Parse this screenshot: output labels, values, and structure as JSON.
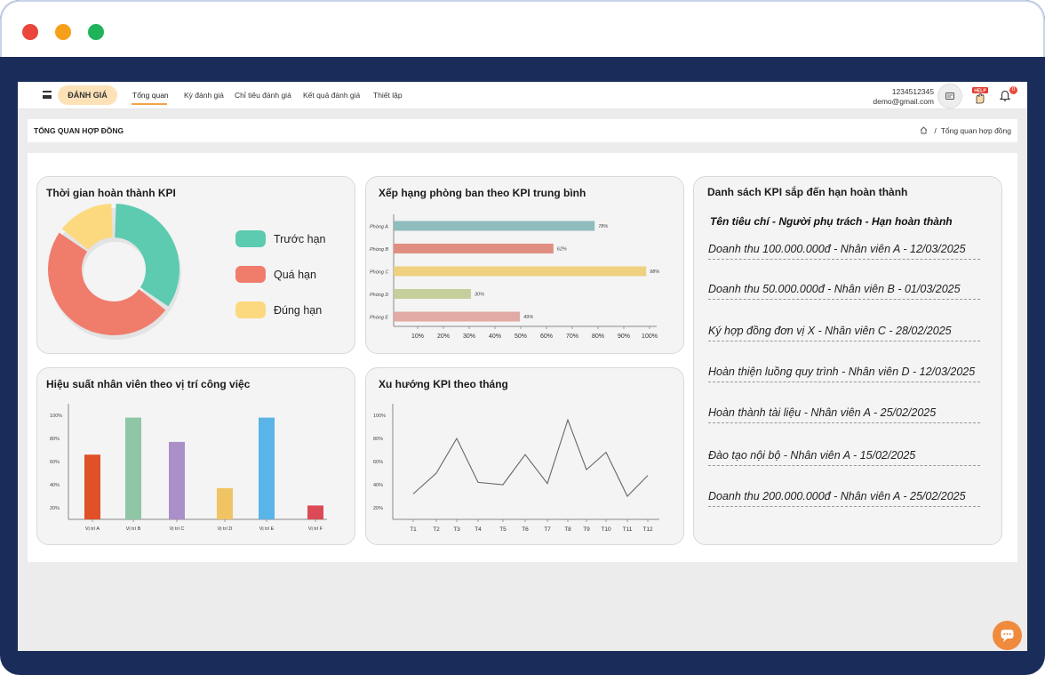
{
  "window": {
    "controls": [
      {
        "name": "close",
        "color": "#e9463c"
      },
      {
        "name": "minimize",
        "color": "#f6a01a"
      },
      {
        "name": "maximize",
        "color": "#1fb45a"
      }
    ]
  },
  "topnav": {
    "brand": "ĐÁNH GIÁ",
    "items": [
      {
        "label": "Tổng quan",
        "active": true
      },
      {
        "label": "Kỳ đánh giá",
        "active": false
      },
      {
        "label": "Chỉ tiêu đánh giá",
        "active": false
      },
      {
        "label": "Kết quả đánh giá",
        "active": false
      },
      {
        "label": "Thiết lập",
        "active": false
      }
    ],
    "user": {
      "phone": "1234512345",
      "email": "demo@gmail.com"
    },
    "help_label": "HELP",
    "notification_count": "0"
  },
  "page": {
    "title": "TỔNG QUAN HỢP ĐỒNG",
    "breadcrumb": {
      "separator": "/",
      "current": "Tổng quan hợp đồng"
    }
  },
  "cards": {
    "completion": {
      "title": "Thời gian hoàn thành KPI"
    },
    "ranking": {
      "title": "Xếp hạng phòng ban theo KPI trung bình"
    },
    "performance": {
      "title": "Hiệu suất nhân viên theo vị trí công việc"
    },
    "trend": {
      "title": "Xu hướng KPI theo tháng"
    },
    "deadlines": {
      "title": "Danh sách KPI sắp đến hạn hoàn thành",
      "header": "Tên tiêu chí - Người phụ trách - Hạn hoàn thành",
      "items": [
        "Doanh thu 100.000.000đ - Nhân viên A - 12/03/2025",
        "Doanh thu 50.000.000đ - Nhân viên B - 01/03/2025",
        "Ký hợp đồng đơn vị X - Nhân viên C - 28/02/2025",
        "Hoàn thiện luồng quy trình - Nhân viên D - 12/03/2025",
        "Hoàn thành tài liệu - Nhân viên A - 25/02/2025",
        "Đào tạo nội bộ - Nhân viên A - 15/02/2025",
        "Doanh thu 200.000.000đ - Nhân viên A - 25/02/2025"
      ]
    }
  },
  "chart_data": [
    {
      "type": "pie",
      "title": "Thời gian hoàn thành KPI",
      "donut": true,
      "labels": [
        "Trước hạn",
        "Quá hạn",
        "Đúng hạn"
      ],
      "values": [
        35,
        50,
        15
      ],
      "colors": [
        "#5ccbb0",
        "#f07c6c",
        "#fcd97f"
      ],
      "legend": "right"
    },
    {
      "type": "bar",
      "orientation": "horizontal",
      "title": "Xếp hạng phòng ban theo KPI trung bình",
      "categories": [
        "Phòng A",
        "Phòng B",
        "Phòng C",
        "Phòng D",
        "Phòng E"
      ],
      "values": [
        78,
        62,
        98,
        30,
        49
      ],
      "value_labels": [
        "78%",
        "62%",
        "98%",
        "30%",
        "49%"
      ],
      "colors": [
        "#8fbcbc",
        "#df8f82",
        "#eed07e",
        "#c5cf9b",
        "#e1aaa4"
      ],
      "xticks": [
        "10%",
        "20%",
        "30%",
        "40%",
        "50%",
        "60%",
        "70%",
        "80%",
        "90%",
        "100%"
      ],
      "xlim": [
        0,
        100
      ]
    },
    {
      "type": "bar",
      "title": "Hiệu suất nhân viên theo vị trí công việc",
      "categories": [
        "Vị trí A",
        "Vị trí B",
        "Vị trí C",
        "Vị trí D",
        "Vị trí E",
        "Vị trí F"
      ],
      "values": [
        66,
        98,
        77,
        37,
        98,
        22
      ],
      "colors": [
        "#e05128",
        "#8ec6a6",
        "#ab8fc9",
        "#f0c462",
        "#5ab4e8",
        "#dc4a55"
      ],
      "yticks": [
        "20%",
        "40%",
        "60%",
        "80%",
        "100%"
      ],
      "ylim": [
        10,
        110
      ]
    },
    {
      "type": "line",
      "title": "Xu hướng KPI theo tháng",
      "x": [
        "T1",
        "T2",
        "T3",
        "T4",
        "T5",
        "T6",
        "T7",
        "T8",
        "T9",
        "T10",
        "T11",
        "T12"
      ],
      "values": [
        32,
        50,
        80,
        42,
        40,
        66,
        41,
        96,
        53,
        68,
        30,
        48
      ],
      "yticks": [
        "20%",
        "40%",
        "60%",
        "80%",
        "100%"
      ],
      "ylim": [
        10,
        110
      ],
      "color": "#666666"
    }
  ]
}
